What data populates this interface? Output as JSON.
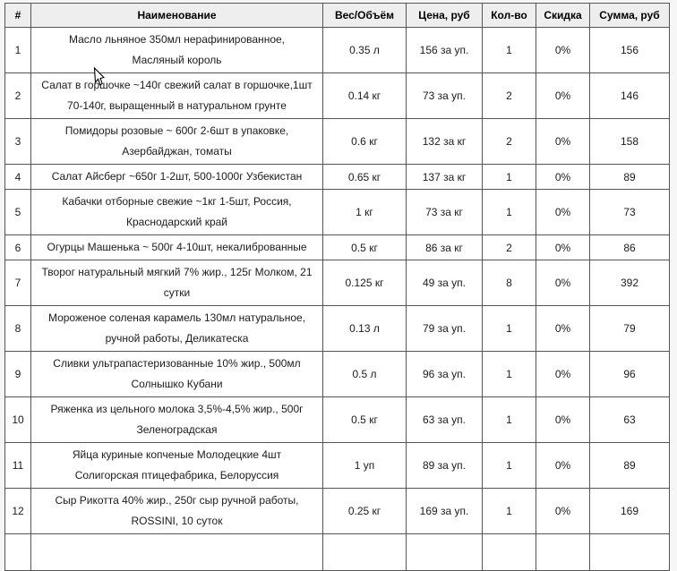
{
  "page": {
    "background": "#f6f6f6"
  },
  "table": {
    "border_color": "#555555",
    "header_bg": "#eeeeee",
    "row_bg": "#ffffff",
    "columns": [
      {
        "label": "#"
      },
      {
        "label": "Наименование"
      },
      {
        "label": "Вес/Объём"
      },
      {
        "label": "Цена, руб"
      },
      {
        "label": "Кол-во"
      },
      {
        "label": "Скидка"
      },
      {
        "label": "Сумма, руб"
      }
    ],
    "rows": [
      {
        "num": "1",
        "name_lines": [
          "Масло льняное 350мл нерафинированное,",
          "Масляный король"
        ],
        "volume": "0.35 л",
        "price": "156 за уп.",
        "qty": "1",
        "discount": "0%",
        "sum": "156"
      },
      {
        "num": "2",
        "name_lines": [
          "Салат в горшочке ~140г свежий салат в горшочке,1шт",
          "70-140г, выращенный в натуральном грунте"
        ],
        "volume": "0.14 кг",
        "price": "73 за уп.",
        "qty": "2",
        "discount": "0%",
        "sum": "146"
      },
      {
        "num": "3",
        "name_lines": [
          "Помидоры розовые ~ 600г 2-6шт в упаковке,",
          "Азербайджан, томаты"
        ],
        "volume": "0.6 кг",
        "price": "132 за кг",
        "qty": "2",
        "discount": "0%",
        "sum": "158"
      },
      {
        "num": "4",
        "name_lines": [
          "Салат Айсберг ~650г 1-2шт, 500-1000г Узбекистан"
        ],
        "volume": "0.65 кг",
        "price": "137 за кг",
        "qty": "1",
        "discount": "0%",
        "sum": "89"
      },
      {
        "num": "5",
        "name_lines": [
          "Кабачки отборные свежие ~1кг 1-5шт, Россия,",
          "Краснодарский край"
        ],
        "volume": "1 кг",
        "price": "73 за кг",
        "qty": "1",
        "discount": "0%",
        "sum": "73"
      },
      {
        "num": "6",
        "name_lines": [
          "Огурцы Машенька ~ 500г 4-10шт, некалиброванные"
        ],
        "volume": "0.5 кг",
        "price": "86 за кг",
        "qty": "2",
        "discount": "0%",
        "sum": "86"
      },
      {
        "num": "7",
        "name_lines": [
          "Творог натуральный мягкий 7% жир., 125г Молком, 21",
          "сутки"
        ],
        "volume": "0.125 кг",
        "price": "49 за уп.",
        "qty": "8",
        "discount": "0%",
        "sum": "392"
      },
      {
        "num": "8",
        "name_lines": [
          "Мороженое соленая карамель 130мл натуральное,",
          "ручной работы, Деликатеска"
        ],
        "volume": "0.13 л",
        "price": "79 за уп.",
        "qty": "1",
        "discount": "0%",
        "sum": "79"
      },
      {
        "num": "9",
        "name_lines": [
          "Сливки ультрапастеризованные 10% жир., 500мл",
          "Солнышко Кубани"
        ],
        "volume": "0.5 л",
        "price": "96 за уп.",
        "qty": "1",
        "discount": "0%",
        "sum": "96"
      },
      {
        "num": "10",
        "name_lines": [
          "Ряженка из цельного молока 3,5%-4,5% жир., 500г",
          "Зеленоградская"
        ],
        "volume": "0.5 кг",
        "price": "63 за уп.",
        "qty": "1",
        "discount": "0%",
        "sum": "63"
      },
      {
        "num": "11",
        "name_lines": [
          "Яйца куриные копченые Молодецкие 4шт",
          "Солигорская птицефабрика, Белоруссия"
        ],
        "volume": "1 уп",
        "price": "89 за уп.",
        "qty": "1",
        "discount": "0%",
        "sum": "89"
      },
      {
        "num": "12",
        "name_lines": [
          "Сыр Рикотта 40% жир., 250г сыр ручной работы,",
          "ROSSINI, 10 суток"
        ],
        "volume": "0.25 кг",
        "price": "169 за уп.",
        "qty": "1",
        "discount": "0%",
        "sum": "169"
      }
    ],
    "partial_row_visible": true
  },
  "cursor": {
    "icon": "arrow-pointer"
  }
}
